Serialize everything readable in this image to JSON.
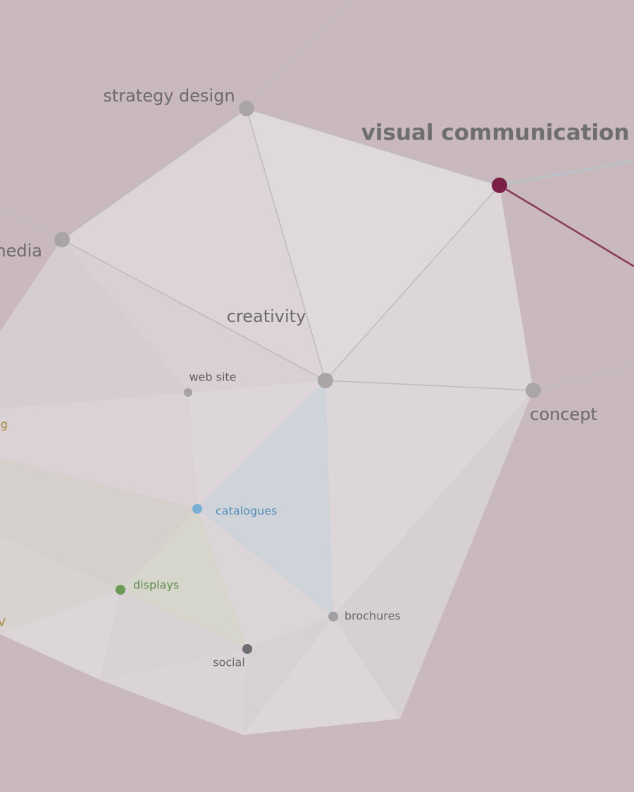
{
  "nodes": [
    {
      "label": "strategy design"
    },
    {
      "label": "visual communication"
    },
    {
      "label": "media"
    },
    {
      "label": "creativity"
    },
    {
      "label": "web site"
    },
    {
      "label": "concept"
    },
    {
      "label": "g"
    },
    {
      "label": "catalogues"
    },
    {
      "label": "displays"
    },
    {
      "label": "V"
    },
    {
      "label": "brochures"
    },
    {
      "label": "social"
    }
  ]
}
